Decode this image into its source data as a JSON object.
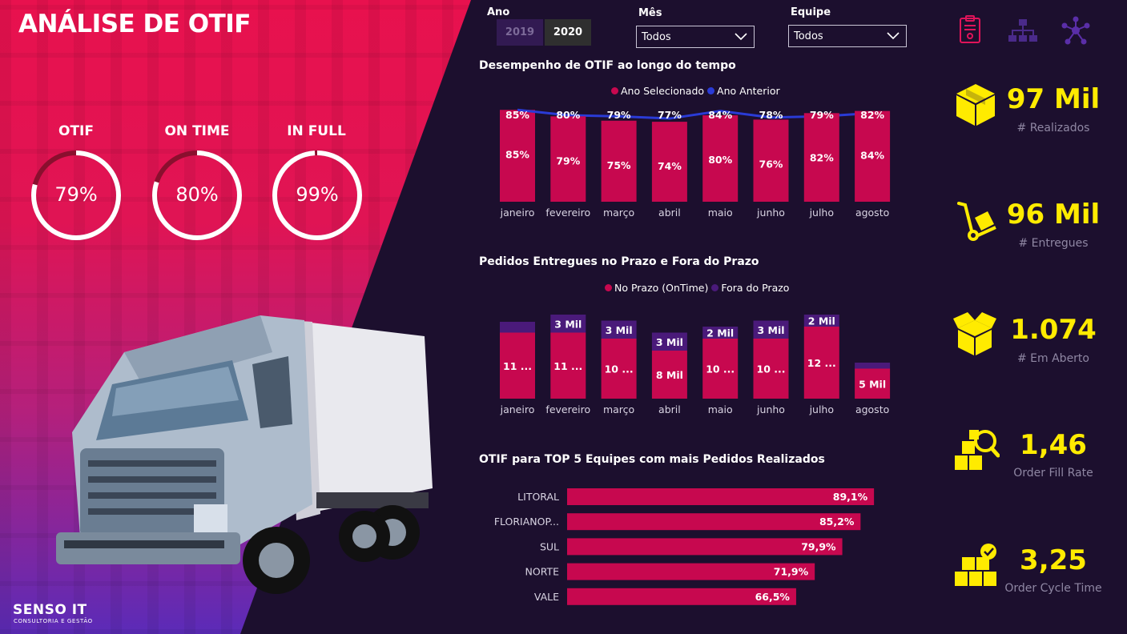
{
  "title": "ANÁLISE DE OTIF",
  "kpis": [
    {
      "label": "OTIF",
      "value": "79%",
      "pct": 0.79
    },
    {
      "label": "ON TIME",
      "value": "80%",
      "pct": 0.8
    },
    {
      "label": "IN FULL",
      "value": "99%",
      "pct": 0.99
    }
  ],
  "brand": {
    "name": "SENSO IT",
    "tagline": "CONSULTORIA E GESTÃO"
  },
  "filters": {
    "year_label": "Ano",
    "years": [
      "2019",
      "2020"
    ],
    "selected_year": "2020",
    "month_label": "Mês",
    "month_value": "Todos",
    "team_label": "Equipe",
    "team_value": "Todos"
  },
  "top_icons": [
    "clipboard-icon",
    "hierarchy-icon",
    "network-icon"
  ],
  "colors": {
    "accent": "#c7084f",
    "previous": "#2a3bd6",
    "late": "#4a1a7a",
    "kpi": "#ffeb00"
  },
  "chart_data": [
    {
      "type": "bar",
      "title": "Desempenho de OTIF ao longo do tempo",
      "categories": [
        "janeiro",
        "fevereiro",
        "março",
        "abril",
        "maio",
        "junho",
        "julho",
        "agosto"
      ],
      "series": [
        {
          "name": "Ano Selecionado",
          "values": [
            85,
            79,
            75,
            74,
            80,
            76,
            82,
            84
          ],
          "labels": [
            "85%",
            "79%",
            "75%",
            "74%",
            "80%",
            "76%",
            "82%",
            "84%"
          ]
        },
        {
          "name": "Ano Anterior",
          "values": [
            85,
            80,
            79,
            77,
            84,
            78,
            79,
            82
          ],
          "labels": [
            "85%",
            "80%",
            "79%",
            "77%",
            "84%",
            "78%",
            "79%",
            "82%"
          ],
          "type": "line"
        }
      ]
    },
    {
      "type": "bar",
      "title": "Pedidos Entregues no Prazo e Fora do Prazo",
      "categories": [
        "janeiro",
        "fevereiro",
        "março",
        "abril",
        "maio",
        "junho",
        "julho",
        "agosto"
      ],
      "series": [
        {
          "name": "No Prazo (OnTime)",
          "values": [
            11000,
            11000,
            10000,
            8000,
            10000,
            10000,
            12000,
            5000
          ],
          "labels": [
            "11 ...",
            "11 ...",
            "10 ...",
            "8 Mil",
            "10 ...",
            "10 ...",
            "12 ...",
            "5 Mil"
          ]
        },
        {
          "name": "Fora do Prazo",
          "values": [
            1800,
            3000,
            3000,
            3000,
            2000,
            3000,
            2000,
            1000
          ],
          "labels": [
            "",
            "3 Mil",
            "3 Mil",
            "3 Mil",
            "2 Mil",
            "3 Mil",
            "2 Mil",
            ""
          ]
        }
      ],
      "stacked": true
    },
    {
      "type": "bar",
      "orientation": "horizontal",
      "title": "OTIF para TOP 5 Equipes com mais Pedidos Realizados",
      "categories": [
        "LITORAL",
        "FLORIANOP...",
        "SUL",
        "NORTE",
        "VALE"
      ],
      "values": [
        89.1,
        85.2,
        79.9,
        71.9,
        66.5
      ],
      "labels": [
        "89,1%",
        "85,2%",
        "79,9%",
        "71,9%",
        "66,5%"
      ]
    }
  ],
  "side_kpis": [
    {
      "value": "97 Mil",
      "label": "# Realizados",
      "icon": "box-icon"
    },
    {
      "value": "96 Mil",
      "label": "# Entregues",
      "icon": "hand-truck-icon"
    },
    {
      "value": "1.074",
      "label": "# Em Aberto",
      "icon": "open-box-icon"
    },
    {
      "value": "1,46",
      "label": "Order Fill Rate",
      "icon": "boxes-search-icon"
    },
    {
      "value": "3,25",
      "label": "Order Cycle Time",
      "icon": "boxes-check-icon"
    }
  ]
}
